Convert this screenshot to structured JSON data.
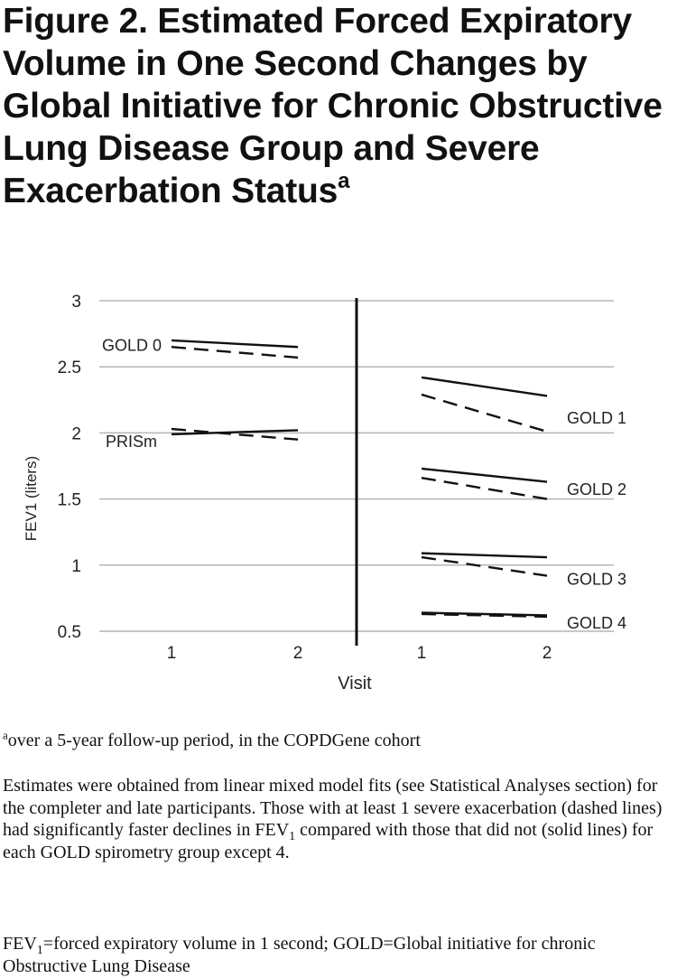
{
  "figure": {
    "title": "Figure 2. Estimated Forced Expiratory Volume in One Second Changes by Global Initiative for Chronic Obstructive Lung Disease Group and Severe Exacerbation Status",
    "title_sup": "a"
  },
  "footnote": {
    "marker": "a",
    "text": "over a 5-year follow-up period, in the COPDGene cohort"
  },
  "notes": {
    "p1_a": "Estimates were obtained from linear mixed model fits (see Statistical Analyses section) for the completer and late participants. Those with at least 1 severe exacerbation (dashed lines) had significantly faster declines in FEV",
    "p1_sub": "1",
    "p1_b": " compared with those that did not (solid lines) for each GOLD spirometry group except 4.",
    "p2_a": "FEV",
    "p2_sub": "1",
    "p2_b": "=forced expiratory volume in 1 second; GOLD=Global initiative for chronic Obstructive Lung Disease"
  },
  "chart_data": {
    "type": "line",
    "ylabel": "FEV1 (liters)",
    "xlabel": "Visit",
    "ylim": [
      0.5,
      3
    ],
    "yticks": [
      "0.5",
      "1",
      "1.5",
      "2",
      "2.5",
      "3"
    ],
    "xticks": [
      "1",
      "2"
    ],
    "grid": true,
    "line_styles": {
      "solid": "no severe exacerbation",
      "dashed": "at least 1 severe exacerbation"
    },
    "panels": [
      {
        "groups": [
          {
            "label": "GOLD 0",
            "solid": [
              2.7,
              2.65
            ],
            "dashed": [
              2.65,
              2.57
            ]
          },
          {
            "label": "PRISm",
            "solid": [
              1.99,
              2.02
            ],
            "dashed": [
              2.03,
              1.95
            ]
          }
        ]
      },
      {
        "groups": [
          {
            "label": "GOLD 1",
            "solid": [
              2.42,
              2.28
            ],
            "dashed": [
              2.29,
              2.01
            ]
          },
          {
            "label": "GOLD 2",
            "solid": [
              1.73,
              1.63
            ],
            "dashed": [
              1.66,
              1.5
            ]
          },
          {
            "label": "GOLD 3",
            "solid": [
              1.09,
              1.06
            ],
            "dashed": [
              1.06,
              0.92
            ]
          },
          {
            "label": "GOLD 4",
            "solid": [
              0.64,
              0.62
            ],
            "dashed": [
              0.63,
              0.61
            ]
          }
        ]
      }
    ]
  }
}
